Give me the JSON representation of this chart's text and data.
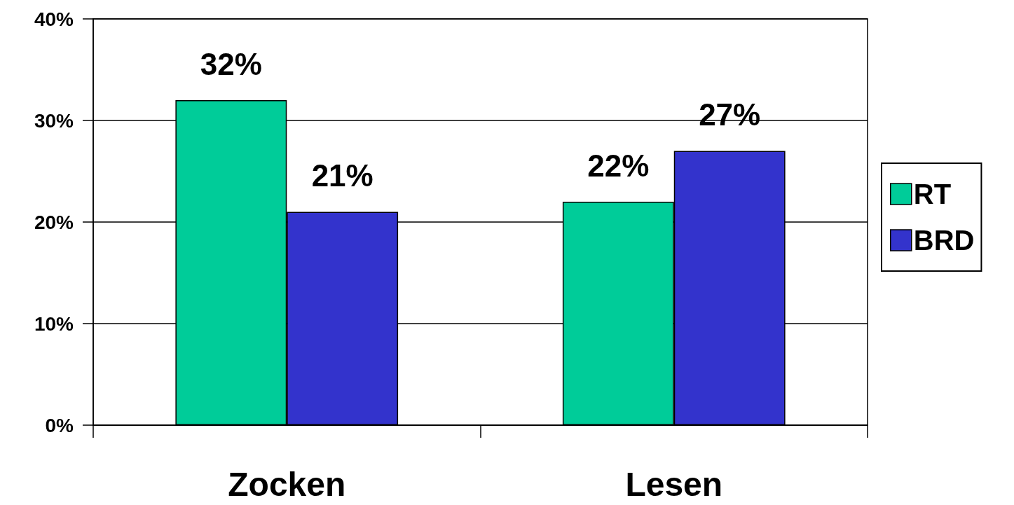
{
  "chart_data": {
    "type": "bar",
    "categories": [
      "Zocken",
      "Lesen"
    ],
    "series": [
      {
        "name": "RT",
        "color": "#00cc99",
        "values": [
          32,
          22
        ],
        "value_labels": [
          "32%",
          "22%"
        ]
      },
      {
        "name": "BRD",
        "color": "#3333cc",
        "values": [
          21,
          27
        ],
        "value_labels": [
          "21%",
          "27%"
        ]
      }
    ],
    "ylim": [
      0,
      40
    ],
    "yticks": [
      {
        "value": 0,
        "label": "0%"
      },
      {
        "value": 10,
        "label": "10%"
      },
      {
        "value": 20,
        "label": "20%"
      },
      {
        "value": 30,
        "label": "30%"
      },
      {
        "value": 40,
        "label": "40%"
      }
    ],
    "grid": "y",
    "legend": "right"
  }
}
